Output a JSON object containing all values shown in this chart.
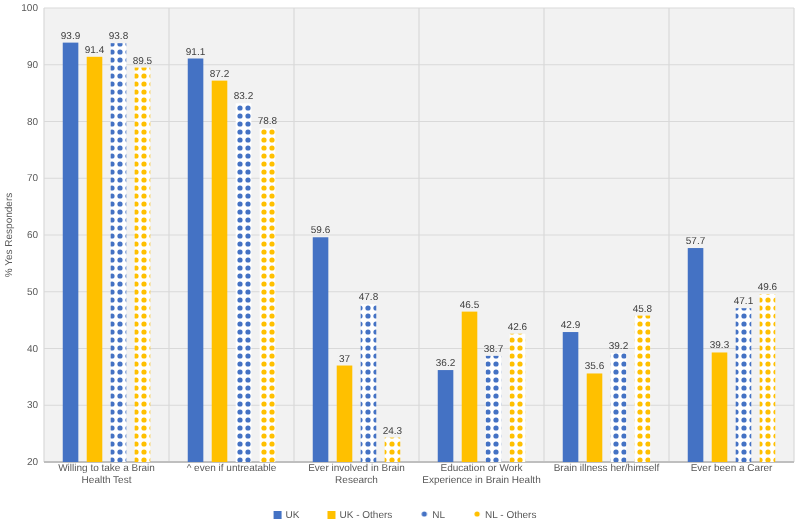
{
  "chart_data": {
    "type": "bar",
    "ylabel": "% Yes Responders",
    "categories": [
      "Willing to take a Brain Health Test",
      "^ even if untreatable",
      "Ever involved in Brain Research",
      "Education or Work Experience in Brain Health",
      "Brain illness her/himself",
      "Ever been a Carer"
    ],
    "series": [
      {
        "name": "UK",
        "color": "#4472c4",
        "values": [
          93.9,
          91.1,
          59.6,
          36.2,
          42.9,
          57.7
        ]
      },
      {
        "name": "UK - Others",
        "color": "#ffc000",
        "values": [
          91.4,
          87.2,
          37,
          46.5,
          35.6,
          39.3
        ]
      },
      {
        "name": "NL",
        "color": "#4472c4",
        "values": [
          93.8,
          83.2,
          47.8,
          38.7,
          39.2,
          47.1
        ]
      },
      {
        "name": "NL - Others",
        "color": "#ffc000",
        "values": [
          89.5,
          78.8,
          24.3,
          42.6,
          45.8,
          49.6
        ]
      }
    ],
    "ylim": [
      20,
      100
    ],
    "yticks": [
      20,
      30,
      40,
      50,
      60,
      70,
      80,
      90,
      100
    ],
    "grid": true,
    "legend": "bottom",
    "data_labels": true
  }
}
